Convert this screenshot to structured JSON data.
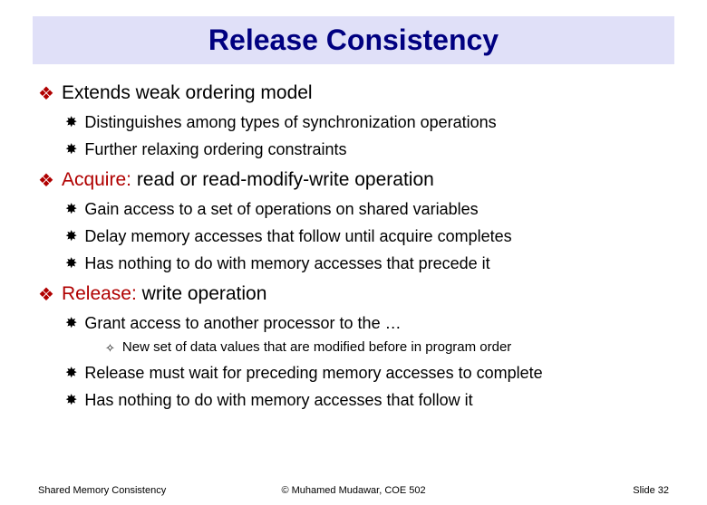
{
  "title": "Release Consistency",
  "bullets": {
    "b1": {
      "text": "Extends weak ordering model"
    },
    "b1_1": {
      "text": "Distinguishes among types of synchronization operations"
    },
    "b1_2": {
      "text": "Further relaxing ordering constraints"
    },
    "b2_kw": "Acquire:",
    "b2_rest": " read or read-modify-write operation",
    "b2_1": {
      "text": "Gain access to a set of operations on shared variables"
    },
    "b2_2": {
      "text": "Delay memory accesses that follow until acquire completes"
    },
    "b2_3": {
      "text": "Has nothing to do with memory accesses that precede it"
    },
    "b3_kw": "Release:",
    "b3_rest": " write operation",
    "b3_1": {
      "text": "Grant access to another processor to the …"
    },
    "b3_1_1": {
      "text": "New set of data values that are modified before in program order"
    },
    "b3_2": {
      "text": "Release must wait for preceding memory accesses to complete"
    },
    "b3_3": {
      "text": "Has nothing to do with memory accesses that follow it"
    }
  },
  "footer": {
    "left": "Shared Memory Consistency",
    "mid": "© Muhamed Mudawar, COE 502",
    "right": "Slide 32"
  },
  "colors": {
    "title_bg": "#e0e0f8",
    "title_fg": "#000080",
    "keyword": "#b00000",
    "bullet1_marker": "#b00000",
    "body_text": "#000000",
    "background": "#ffffff"
  },
  "markers": {
    "level1": "❖",
    "level2": "✸",
    "level3": "✧"
  }
}
